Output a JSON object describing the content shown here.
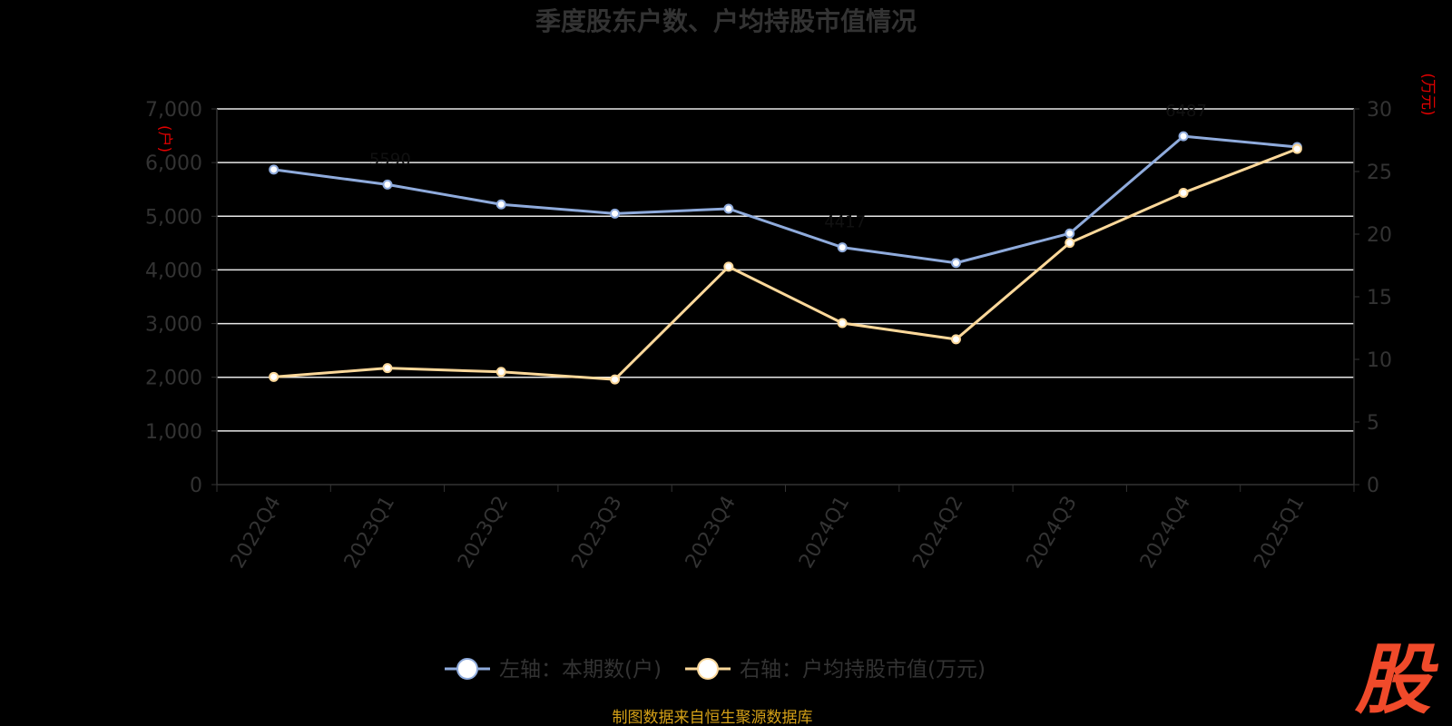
{
  "chart_data": {
    "type": "line",
    "title": "季度股东户数、户均持股市值情况",
    "categories": [
      "2022Q4",
      "2023Q1",
      "2023Q2",
      "2023Q3",
      "2023Q4",
      "2024Q1",
      "2024Q2",
      "2024Q3",
      "2024Q4",
      "2025Q1"
    ],
    "left_axis": {
      "unit": "(户)",
      "ylim": [
        0,
        7000
      ],
      "ticks": [
        "0",
        "1,000",
        "2,000",
        "3,000",
        "4,000",
        "5,000",
        "6,000",
        "7,000"
      ]
    },
    "right_axis": {
      "unit": "(万元)",
      "ylim": [
        0,
        30
      ],
      "ticks": [
        "0",
        "5",
        "10",
        "15",
        "20",
        "25",
        "30"
      ]
    },
    "series": [
      {
        "name": "左轴：本期数(户)",
        "axis": "left",
        "color": "#8fabdc",
        "values": [
          5870,
          5590,
          5220,
          5050,
          5140,
          4420,
          4130,
          4680,
          6490,
          6290
        ]
      },
      {
        "name": "右轴：户均持股市值(万元)",
        "axis": "right",
        "color": "#fcd89a",
        "values": [
          8.6,
          9.3,
          9.0,
          8.4,
          17.4,
          12.9,
          11.6,
          19.3,
          23.3,
          26.8
        ]
      }
    ],
    "data_labels": [
      {
        "series": 0,
        "index": 1,
        "text": "5590"
      },
      {
        "series": 0,
        "index": 5,
        "text": "4417"
      },
      {
        "series": 0,
        "index": 8,
        "text": "6487"
      }
    ],
    "grid": true,
    "legend_position": "bottom"
  },
  "source_note": "制图数据来自恒生聚源数据库",
  "logo_text": "股"
}
